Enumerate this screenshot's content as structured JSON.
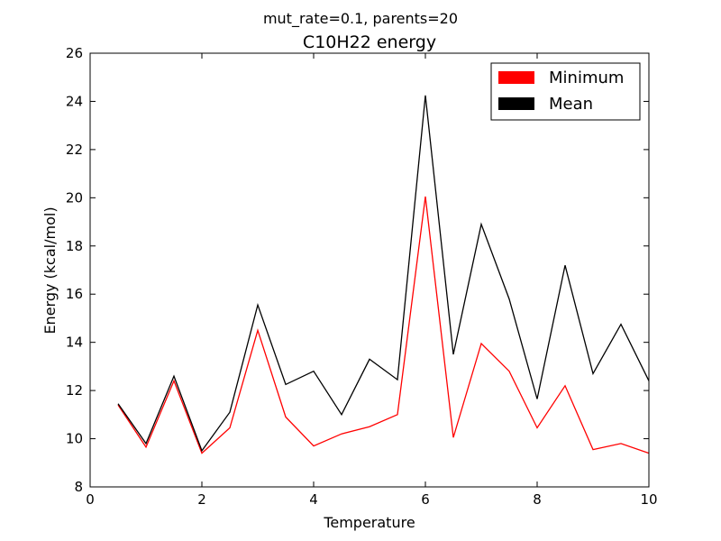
{
  "chart_data": {
    "type": "line",
    "suptitle": "mut_rate=0.1, parents=20",
    "title": "C10H22 energy",
    "xlabel": "Temperature",
    "ylabel": "Energy (kcal/mol)",
    "xlim": [
      0,
      10
    ],
    "ylim": [
      8,
      26
    ],
    "xticks": [
      0,
      2,
      4,
      6,
      8,
      10
    ],
    "yticks": [
      8,
      10,
      12,
      14,
      16,
      18,
      20,
      22,
      24,
      26
    ],
    "grid": false,
    "legend_position": "top-right",
    "x": [
      0.5,
      1,
      1.5,
      2,
      2.5,
      3,
      3.5,
      4,
      4.5,
      5,
      5.5,
      6,
      6.5,
      7,
      7.5,
      8,
      8.5,
      9,
      9.5,
      10
    ],
    "series": [
      {
        "name": "Minimum",
        "color": "#ff0000",
        "values": [
          11.4,
          9.65,
          12.4,
          9.4,
          10.45,
          14.5,
          10.9,
          9.7,
          10.2,
          10.5,
          11.0,
          20.05,
          10.05,
          13.95,
          12.8,
          10.45,
          12.2,
          9.55,
          9.8,
          9.4
        ]
      },
      {
        "name": "Mean",
        "color": "#000000",
        "values": [
          11.45,
          9.8,
          12.6,
          9.5,
          11.1,
          15.55,
          12.25,
          12.8,
          11.0,
          13.3,
          12.45,
          24.25,
          13.5,
          18.9,
          15.8,
          11.65,
          17.2,
          12.7,
          14.75,
          12.4
        ]
      }
    ]
  }
}
